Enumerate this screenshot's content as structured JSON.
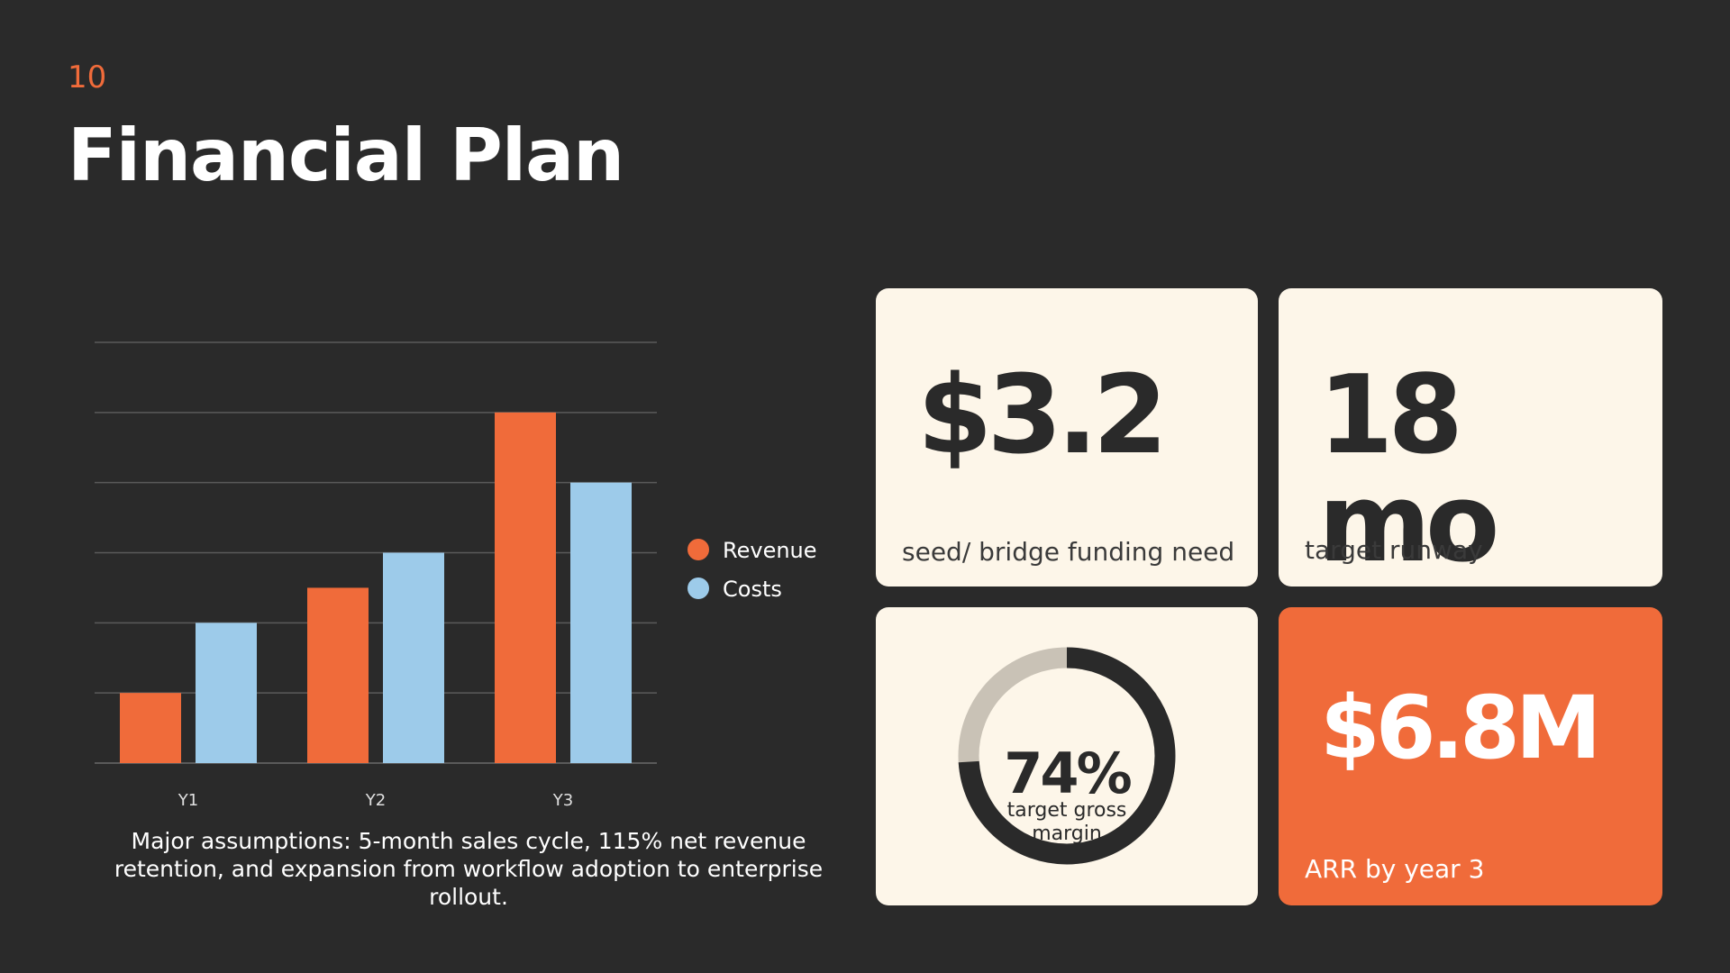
{
  "slide": {
    "number": "10",
    "title": "Financial Plan"
  },
  "chart_data": {
    "type": "bar",
    "categories": [
      "Y1",
      "Y2",
      "Y3"
    ],
    "series": [
      {
        "name": "Revenue",
        "values": [
          1,
          2.5,
          5
        ],
        "color": "#f06b3a"
      },
      {
        "name": "Costs",
        "values": [
          2,
          3,
          4
        ],
        "color": "#9dcbea"
      }
    ],
    "ylim": [
      0,
      6
    ],
    "grid": true,
    "legend": "right",
    "title": "",
    "xlabel": "",
    "ylabel": ""
  },
  "assumptions": "Major assumptions: 5-month sales cycle, 115% net revenue retention, and expansion from workflow adoption to enterprise rollout.",
  "cards": {
    "funding": {
      "value": "$3.2",
      "label": "seed/ bridge funding need"
    },
    "runway": {
      "value": "18 mo",
      "label": "target runway"
    },
    "margin": {
      "value": "74%",
      "label": "target gross margin",
      "percent": 74
    },
    "arr": {
      "value": "$6.8M",
      "label": "ARR by year 3"
    }
  },
  "colors": {
    "background": "#2a2a2a",
    "accent": "#f06b3a",
    "secondary": "#9dcbea",
    "card": "#fdf6e9",
    "grid": "#5a5a5a",
    "donut_track": "#c9c2b6"
  }
}
